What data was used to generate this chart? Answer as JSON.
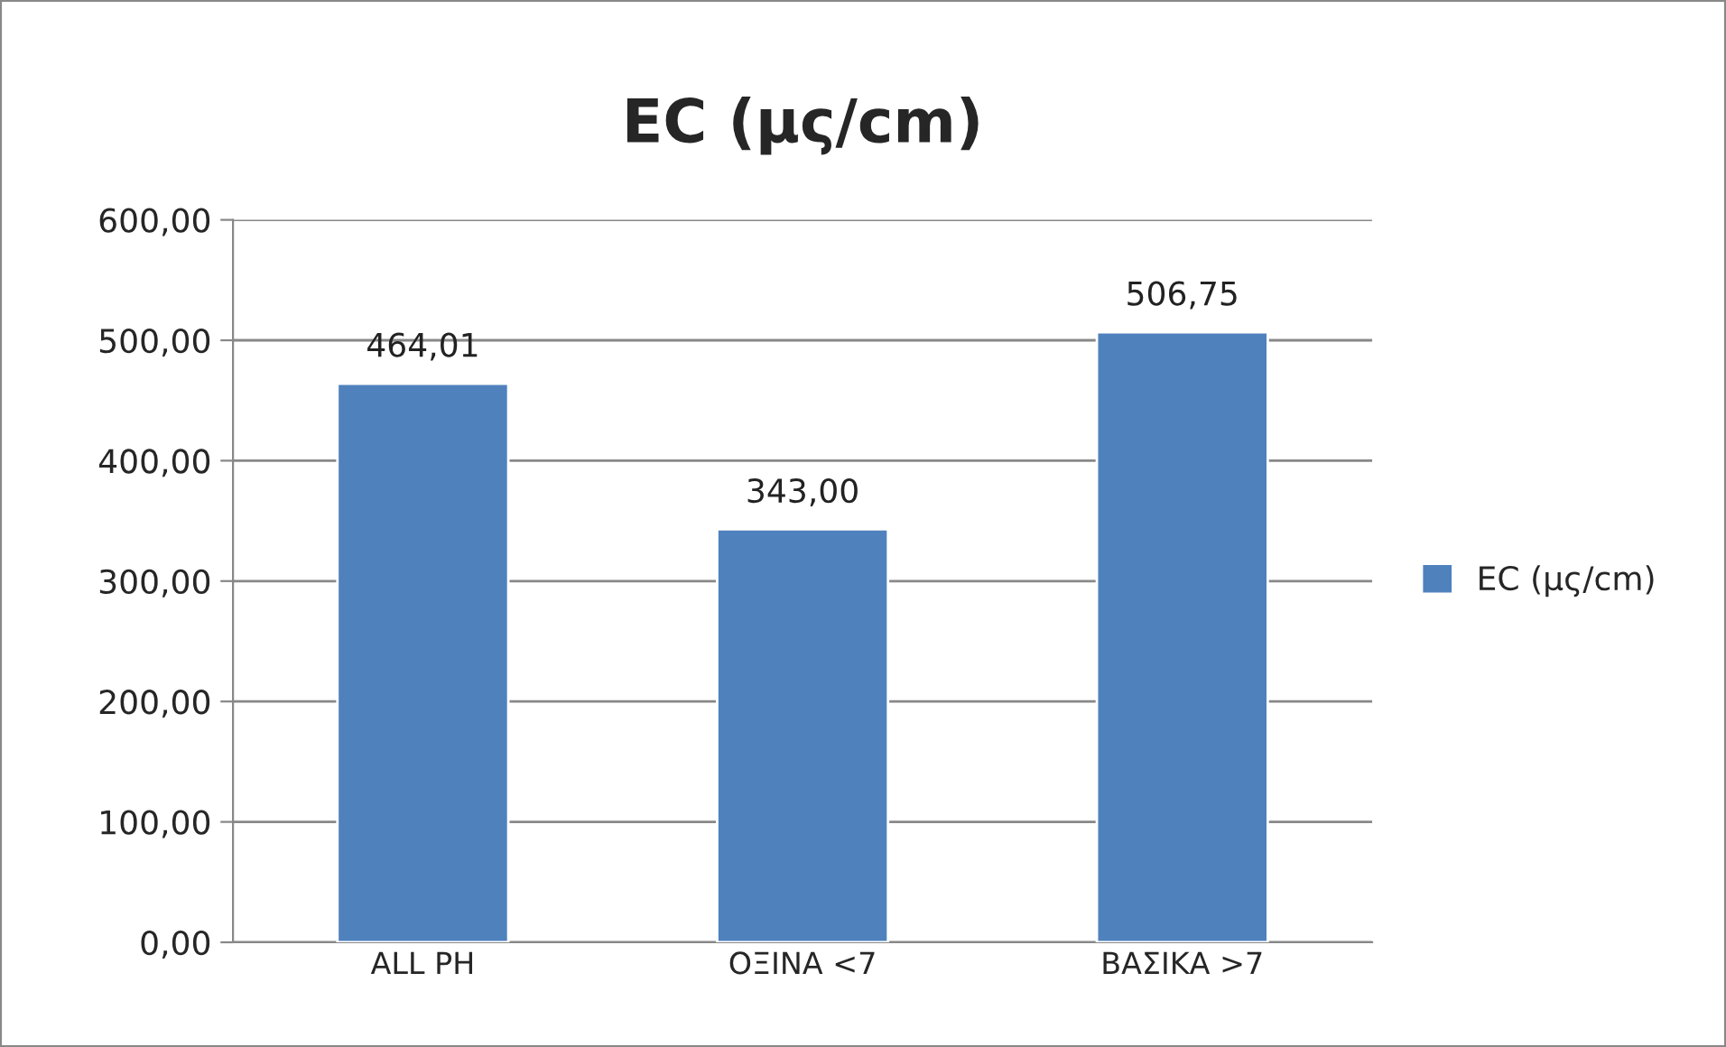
{
  "chart_data": {
    "type": "bar",
    "title": "EC (μς/cm)",
    "categories": [
      "ALL PH",
      "ΟΞΙΝΑ <7",
      "ΒΑΣΙΚΑ >7"
    ],
    "series": [
      {
        "name": "EC (μς/cm)",
        "color": "#4f81bd",
        "values": [
          464.01,
          343.0,
          506.75
        ],
        "value_labels": [
          "464,01",
          "343,00",
          "506,75"
        ]
      }
    ],
    "ylim": [
      0,
      600
    ],
    "yticks": [
      {
        "value": 0,
        "label": "0,00"
      },
      {
        "value": 100,
        "label": "100,00"
      },
      {
        "value": 200,
        "label": "200,00"
      },
      {
        "value": 300,
        "label": "300,00"
      },
      {
        "value": 400,
        "label": "400,00"
      },
      {
        "value": 500,
        "label": "500,00"
      },
      {
        "value": 600,
        "label": "600,00"
      }
    ],
    "grid": "y",
    "legend": "right"
  }
}
